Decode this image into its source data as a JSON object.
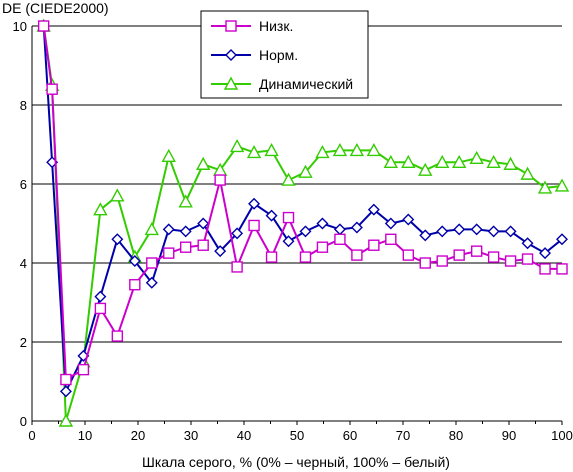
{
  "chart_data": {
    "type": "line",
    "ylabel": "DE (CIEDE2000)",
    "xlabel": "Шкала серого, % (0% – черный, 100% – белый)",
    "xlim": [
      0,
      100
    ],
    "ylim": [
      0,
      10
    ],
    "xticks": [
      0,
      10,
      20,
      30,
      40,
      50,
      60,
      70,
      80,
      90,
      100
    ],
    "yticks": [
      0,
      2,
      4,
      6,
      8,
      10
    ],
    "grid": "horizontal",
    "legend_position": "top-center",
    "series": [
      {
        "name": "Низк.",
        "color": "#cc00cc",
        "marker": "square",
        "points": [
          [
            2.2,
            10.0
          ],
          [
            3.8,
            8.4
          ],
          [
            6.4,
            1.05
          ],
          [
            9.7,
            1.3
          ],
          [
            12.9,
            2.85
          ],
          [
            16.1,
            2.15
          ],
          [
            19.4,
            3.45
          ],
          [
            22.6,
            4.0
          ],
          [
            25.8,
            4.25
          ],
          [
            29.0,
            4.4
          ],
          [
            32.3,
            4.45
          ],
          [
            35.5,
            6.1
          ],
          [
            38.7,
            3.9
          ],
          [
            41.9,
            4.95
          ],
          [
            45.2,
            4.15
          ],
          [
            48.4,
            5.15
          ],
          [
            51.6,
            4.15
          ],
          [
            54.8,
            4.4
          ],
          [
            58.1,
            4.6
          ],
          [
            61.3,
            4.2
          ],
          [
            64.5,
            4.45
          ],
          [
            67.7,
            4.6
          ],
          [
            71.0,
            4.2
          ],
          [
            74.2,
            4.0
          ],
          [
            77.4,
            4.05
          ],
          [
            80.6,
            4.2
          ],
          [
            83.9,
            4.3
          ],
          [
            87.1,
            4.15
          ],
          [
            90.3,
            4.05
          ],
          [
            93.5,
            4.1
          ],
          [
            96.8,
            3.85
          ],
          [
            100.0,
            3.85
          ]
        ]
      },
      {
        "name": "Норм.",
        "color": "#0000aa",
        "marker": "diamond",
        "points": [
          [
            2.2,
            10.0
          ],
          [
            3.8,
            6.55
          ],
          [
            6.4,
            0.75
          ],
          [
            9.7,
            1.65
          ],
          [
            12.9,
            3.15
          ],
          [
            16.1,
            4.6
          ],
          [
            19.4,
            4.05
          ],
          [
            22.6,
            3.5
          ],
          [
            25.8,
            4.85
          ],
          [
            29.0,
            4.8
          ],
          [
            32.3,
            5.0
          ],
          [
            35.5,
            4.3
          ],
          [
            38.7,
            4.75
          ],
          [
            41.9,
            5.5
          ],
          [
            45.2,
            5.2
          ],
          [
            48.4,
            4.55
          ],
          [
            51.6,
            4.8
          ],
          [
            54.8,
            5.0
          ],
          [
            58.1,
            4.85
          ],
          [
            61.3,
            4.9
          ],
          [
            64.5,
            5.35
          ],
          [
            67.7,
            5.0
          ],
          [
            71.0,
            5.1
          ],
          [
            74.2,
            4.7
          ],
          [
            77.4,
            4.8
          ],
          [
            80.6,
            4.85
          ],
          [
            83.9,
            4.85
          ],
          [
            87.1,
            4.8
          ],
          [
            90.3,
            4.8
          ],
          [
            93.5,
            4.5
          ],
          [
            96.8,
            4.25
          ],
          [
            100.0,
            4.6
          ]
        ]
      },
      {
        "name": "Динамический",
        "color": "#33cc00",
        "marker": "triangle",
        "points": [
          [
            2.2,
            10.0
          ],
          [
            3.8,
            8.5
          ],
          [
            6.4,
            0.0
          ],
          [
            9.7,
            1.5
          ],
          [
            12.9,
            5.35
          ],
          [
            16.1,
            5.7
          ],
          [
            19.4,
            4.15
          ],
          [
            22.6,
            4.85
          ],
          [
            25.8,
            6.7
          ],
          [
            29.0,
            5.55
          ],
          [
            32.3,
            6.5
          ],
          [
            35.5,
            6.35
          ],
          [
            38.7,
            6.95
          ],
          [
            41.9,
            6.8
          ],
          [
            45.2,
            6.85
          ],
          [
            48.4,
            6.1
          ],
          [
            51.6,
            6.3
          ],
          [
            54.8,
            6.8
          ],
          [
            58.1,
            6.85
          ],
          [
            61.3,
            6.85
          ],
          [
            64.5,
            6.85
          ],
          [
            67.7,
            6.55
          ],
          [
            71.0,
            6.55
          ],
          [
            74.2,
            6.35
          ],
          [
            77.4,
            6.55
          ],
          [
            80.6,
            6.55
          ],
          [
            83.9,
            6.65
          ],
          [
            87.1,
            6.55
          ],
          [
            90.3,
            6.5
          ],
          [
            93.5,
            6.25
          ],
          [
            96.8,
            5.9
          ],
          [
            100.0,
            5.95
          ]
        ]
      }
    ]
  }
}
